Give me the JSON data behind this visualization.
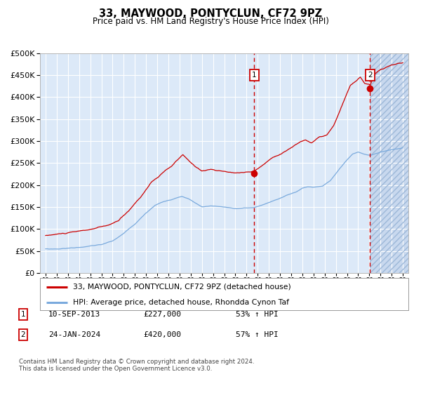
{
  "title": "33, MAYWOOD, PONTYCLUN, CF72 9PZ",
  "subtitle": "Price paid vs. HM Land Registry's House Price Index (HPI)",
  "ytick_vals": [
    0,
    50000,
    100000,
    150000,
    200000,
    250000,
    300000,
    350000,
    400000,
    450000,
    500000
  ],
  "xlim_start": 1994.5,
  "xlim_end": 2027.5,
  "ylim": [
    0,
    500000
  ],
  "plot_bg_color": "#dce9f8",
  "hatch_bg_color": "#c8d8ee",
  "grid_color": "#ffffff",
  "red_line_color": "#cc0000",
  "blue_line_color": "#7aaadd",
  "marker1_date_x": 2013.69,
  "marker1_y": 227000,
  "marker2_date_x": 2024.07,
  "marker2_y": 420000,
  "vline1_x": 2013.69,
  "vline2_x": 2024.07,
  "legend_line1": "33, MAYWOOD, PONTYCLUN, CF72 9PZ (detached house)",
  "legend_line2": "HPI: Average price, detached house, Rhondda Cynon Taf",
  "note1_label": "1",
  "note1_date": "10-SEP-2013",
  "note1_price": "£227,000",
  "note1_hpi": "53% ↑ HPI",
  "note2_label": "2",
  "note2_date": "24-JAN-2024",
  "note2_price": "£420,000",
  "note2_hpi": "57% ↑ HPI",
  "footer": "Contains HM Land Registry data © Crown copyright and database right 2024.\nThis data is licensed under the Open Government Licence v3.0.",
  "xtick_years": [
    1995,
    1996,
    1997,
    1998,
    1999,
    2000,
    2001,
    2002,
    2003,
    2004,
    2005,
    2006,
    2007,
    2008,
    2009,
    2010,
    2011,
    2012,
    2013,
    2014,
    2015,
    2016,
    2017,
    2018,
    2019,
    2020,
    2021,
    2022,
    2023,
    2024,
    2025,
    2026,
    2027
  ]
}
